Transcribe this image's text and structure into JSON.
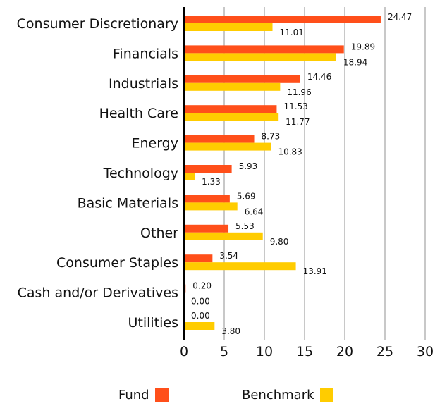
{
  "chart_data": {
    "type": "bar",
    "orientation": "horizontal",
    "categories": [
      "Consumer Discretionary",
      "Financials",
      "Industrials",
      "Health Care",
      "Energy",
      "Technology",
      "Basic Materials",
      "Other",
      "Consumer Staples",
      "Cash and/or Derivatives",
      "Utilities"
    ],
    "series": [
      {
        "name": "Fund",
        "color": "#ff4f1a",
        "values": [
          24.47,
          19.89,
          14.46,
          11.53,
          8.73,
          5.93,
          5.69,
          5.53,
          3.54,
          0.2,
          0.0
        ],
        "labels": [
          "24.47",
          "19.89",
          "14.46",
          "11.53",
          "8.73",
          "5.93",
          "5.69",
          "5.53",
          "3.54",
          "0.20",
          "0.00"
        ]
      },
      {
        "name": "Benchmark",
        "color": "#ffcc00",
        "values": [
          11.01,
          18.94,
          11.96,
          11.77,
          10.83,
          1.33,
          6.64,
          9.8,
          13.91,
          0.0,
          3.8
        ],
        "labels": [
          "11.01",
          "18.94",
          "11.96",
          "11.77",
          "10.83",
          "1.33",
          "6.64",
          "9.80",
          "13.91",
          "0.00",
          "3.80"
        ]
      }
    ],
    "xlim": [
      0,
      30
    ],
    "xticks": [
      "0",
      "5",
      "10",
      "15",
      "20",
      "25",
      "30"
    ],
    "grid": true,
    "legend_position": "bottom"
  }
}
